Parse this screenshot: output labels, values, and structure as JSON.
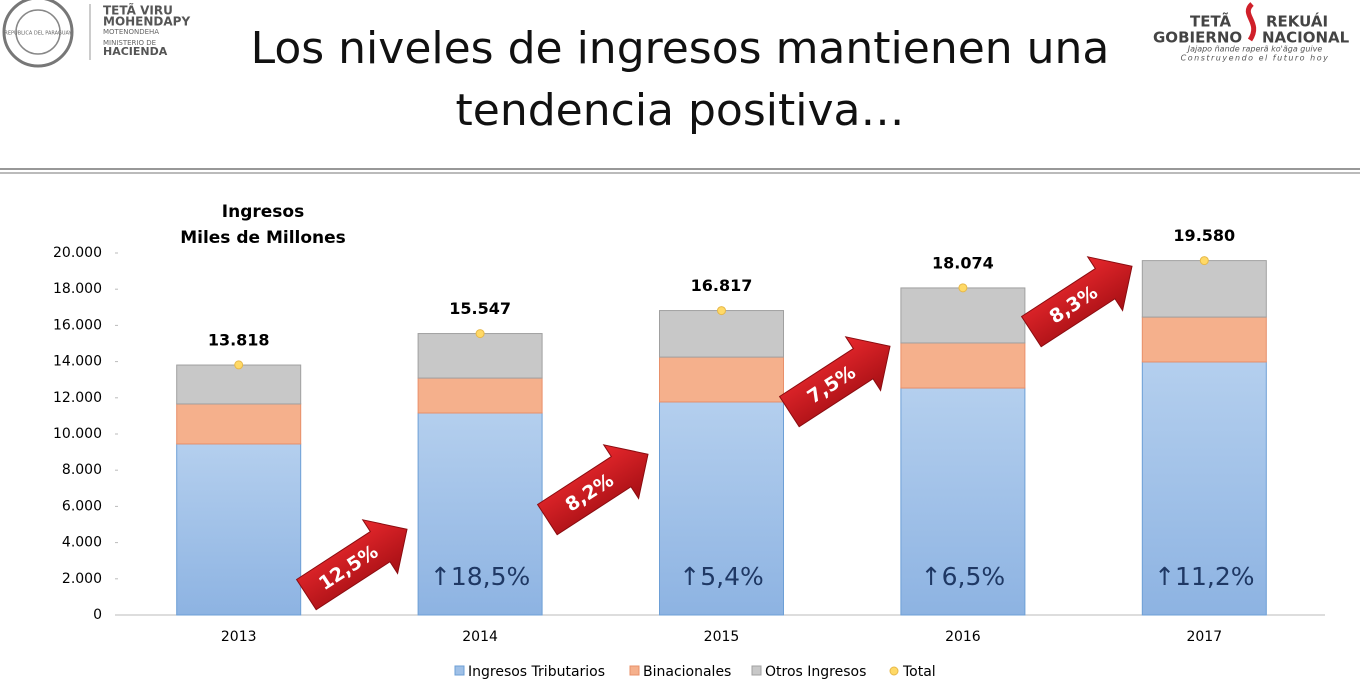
{
  "header": {
    "seal": "REPÚBLICA DEL PARAGUAY",
    "ministry_1": "TETÃ VIRU",
    "ministry_2": "MOHENDAPY",
    "ministry_3": "MOTENONDEHA",
    "ministry_4": "MINISTERIO DE",
    "ministry_5": "HACIENDA",
    "gov_1": "TETÃ",
    "gov_2": "REKUÁI",
    "gov_3": "GOBIERNO",
    "gov_4": "NACIONAL",
    "gov_5": "Jajapo ñande raperã ko'ãga guive",
    "gov_6": "Construyendo el futuro hoy",
    "title": "Los niveles de ingresos mantienen una tendencia positiva…"
  },
  "chart_data": {
    "type": "bar",
    "stacked": true,
    "title": "Ingresos",
    "subtitle": "Miles de Millones",
    "categories": [
      "2013",
      "2014",
      "2015",
      "2016",
      "2017"
    ],
    "series": [
      {
        "name": "Ingresos Tributarios",
        "color": "#9fc0e7",
        "values": [
          9450,
          11160,
          11770,
          12540,
          13980
        ]
      },
      {
        "name": "Binacionales",
        "color": "#f5b08c",
        "values": [
          2210,
          1930,
          2480,
          2490,
          2480
        ]
      },
      {
        "name": "Otros Ingresos",
        "color": "#c8c8c8",
        "values": [
          2150,
          2460,
          2570,
          3040,
          3120
        ]
      },
      {
        "name": "Total",
        "color": "#ffd966",
        "type": "point",
        "values": [
          13818,
          15547,
          16817,
          18074,
          19580
        ],
        "value_labels": [
          "13.818",
          "15.547",
          "16.817",
          "18.074",
          "19.580"
        ]
      }
    ],
    "ylim": [
      0,
      20000
    ],
    "yticks": [
      0,
      {
        "value": 2000,
        "label": "2.000"
      },
      {
        "value": 4000,
        "label": "4.000"
      },
      {
        "value": 6000,
        "label": "6.000"
      },
      {
        "value": 8000,
        "label": "8.000"
      },
      {
        "value": 10000,
        "label": "10.000"
      },
      {
        "value": 12000,
        "label": "12.000"
      },
      {
        "value": 14000,
        "label": "14.000"
      },
      {
        "value": 16000,
        "label": "16.000"
      },
      {
        "value": 18000,
        "label": "18.000"
      },
      {
        "value": 20000,
        "label": "20.000"
      }
    ],
    "legend": "bottom",
    "growth_labels": [
      "12,5%",
      "8,2%",
      "7,5%",
      "8,3%"
    ],
    "bar_labels": [
      "↑18,5%",
      "↑5,4%",
      "↑6,5%",
      "↑11,2%"
    ]
  }
}
